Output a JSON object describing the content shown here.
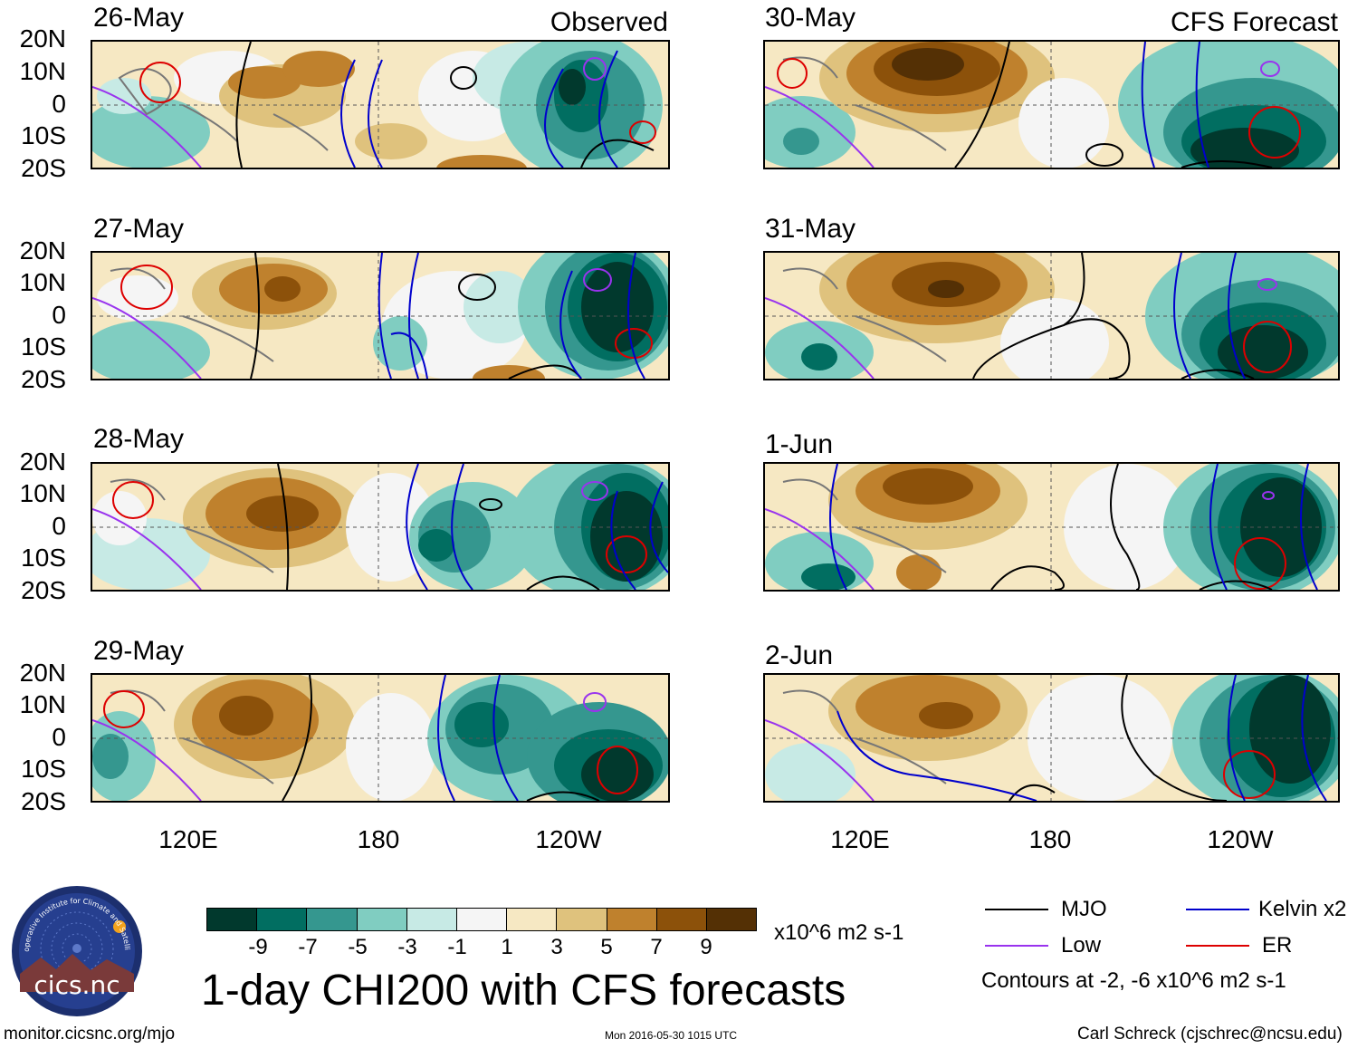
{
  "headers": {
    "observed": "Observed",
    "forecast": "CFS Forecast"
  },
  "panels": [
    {
      "date": "26-May"
    },
    {
      "date": "27-May"
    },
    {
      "date": "28-May"
    },
    {
      "date": "29-May"
    },
    {
      "date": "30-May"
    },
    {
      "date": "31-May"
    },
    {
      "date": "1-Jun"
    },
    {
      "date": "2-Jun"
    }
  ],
  "lat_labels": [
    "20N",
    "10N",
    "0",
    "10S",
    "20S"
  ],
  "lon_labels": [
    "120E",
    "180",
    "120W"
  ],
  "colorbar": {
    "ticks": [
      "-9",
      "-7",
      "-5",
      "-3",
      "-1",
      "1",
      "3",
      "5",
      "7",
      "9"
    ],
    "units": "x10^6 m2 s-1",
    "colors": [
      "#01392d",
      "#016e61",
      "#35978f",
      "#80cdc1",
      "#c7eae5",
      "#f5f5f5",
      "#f6e8c3",
      "#dfc27d",
      "#bf812d",
      "#8c510a",
      "#543005"
    ]
  },
  "title": "1-day CHI200 with CFS forecasts",
  "legend": {
    "mjo": "MJO",
    "kelvin": "Kelvin x2",
    "low": "Low",
    "er": "ER",
    "contours": "Contours at -2, -6 x10^6 m2 s-1",
    "colors": {
      "mjo": "#000000",
      "kelvin": "#0000cc",
      "low": "#9933ee",
      "er": "#dd0000"
    }
  },
  "logo": {
    "arc_text": "Cooperative Institute for Climate and Satellites",
    "name": "cics.nc"
  },
  "footer": {
    "url": "monitor.cicsnc.org/mjo",
    "timestamp": "Mon 2016-05-30 1015 UTC",
    "author": "Carl Schreck (cjschrec@ncsu.edu)"
  }
}
